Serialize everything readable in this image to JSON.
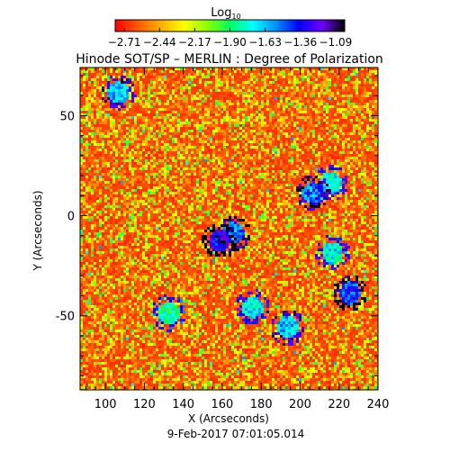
{
  "chart_data": {
    "type": "heatmap",
    "title": "Hinode SOT/SP – MERLIN : Degree of Polarization",
    "xlabel": "X (Arcseconds)",
    "ylabel": "Y (Arcseconds)",
    "xlim": [
      87,
      240
    ],
    "ylim": [
      -87,
      74
    ],
    "x_ticks": [
      100,
      120,
      140,
      160,
      180,
      200,
      220,
      240
    ],
    "y_ticks": [
      50,
      0,
      -50
    ],
    "colorbar": {
      "label": "Log",
      "label_subscript": "10",
      "range": [
        -2.78,
        -1.02
      ],
      "ticks": [
        -2.71,
        -2.44,
        -2.17,
        -1.9,
        -1.63,
        -1.36,
        -1.09
      ],
      "tick_labels": [
        "−2.71",
        "−2.44",
        "−2.17",
        "−1.90",
        "−1.63",
        "−1.36",
        "−1.09"
      ],
      "colormap": [
        "#ff0000",
        "#ff5a00",
        "#ffb000",
        "#ffff00",
        "#8cff00",
        "#00ff60",
        "#00ffff",
        "#0090ff",
        "#0000ff",
        "#7000ff",
        "#000000"
      ]
    },
    "field": {
      "background_log10": -2.71,
      "features": [
        {
          "x": 158,
          "y": -12,
          "log10": -1.4
        },
        {
          "x": 165,
          "y": -8,
          "log10": -1.6
        },
        {
          "x": 206,
          "y": 12,
          "log10": -1.6
        },
        {
          "x": 215,
          "y": 17,
          "log10": -1.8
        },
        {
          "x": 106,
          "y": 62,
          "log10": -1.7
        },
        {
          "x": 225,
          "y": -38,
          "log10": -1.5
        },
        {
          "x": 193,
          "y": -55,
          "log10": -1.7
        },
        {
          "x": 175,
          "y": -45,
          "log10": -1.8
        },
        {
          "x": 132,
          "y": -48,
          "log10": -1.9
        },
        {
          "x": 216,
          "y": -18,
          "log10": -1.8
        }
      ]
    },
    "footer": "9-Feb-2017 07:01:05.014"
  }
}
